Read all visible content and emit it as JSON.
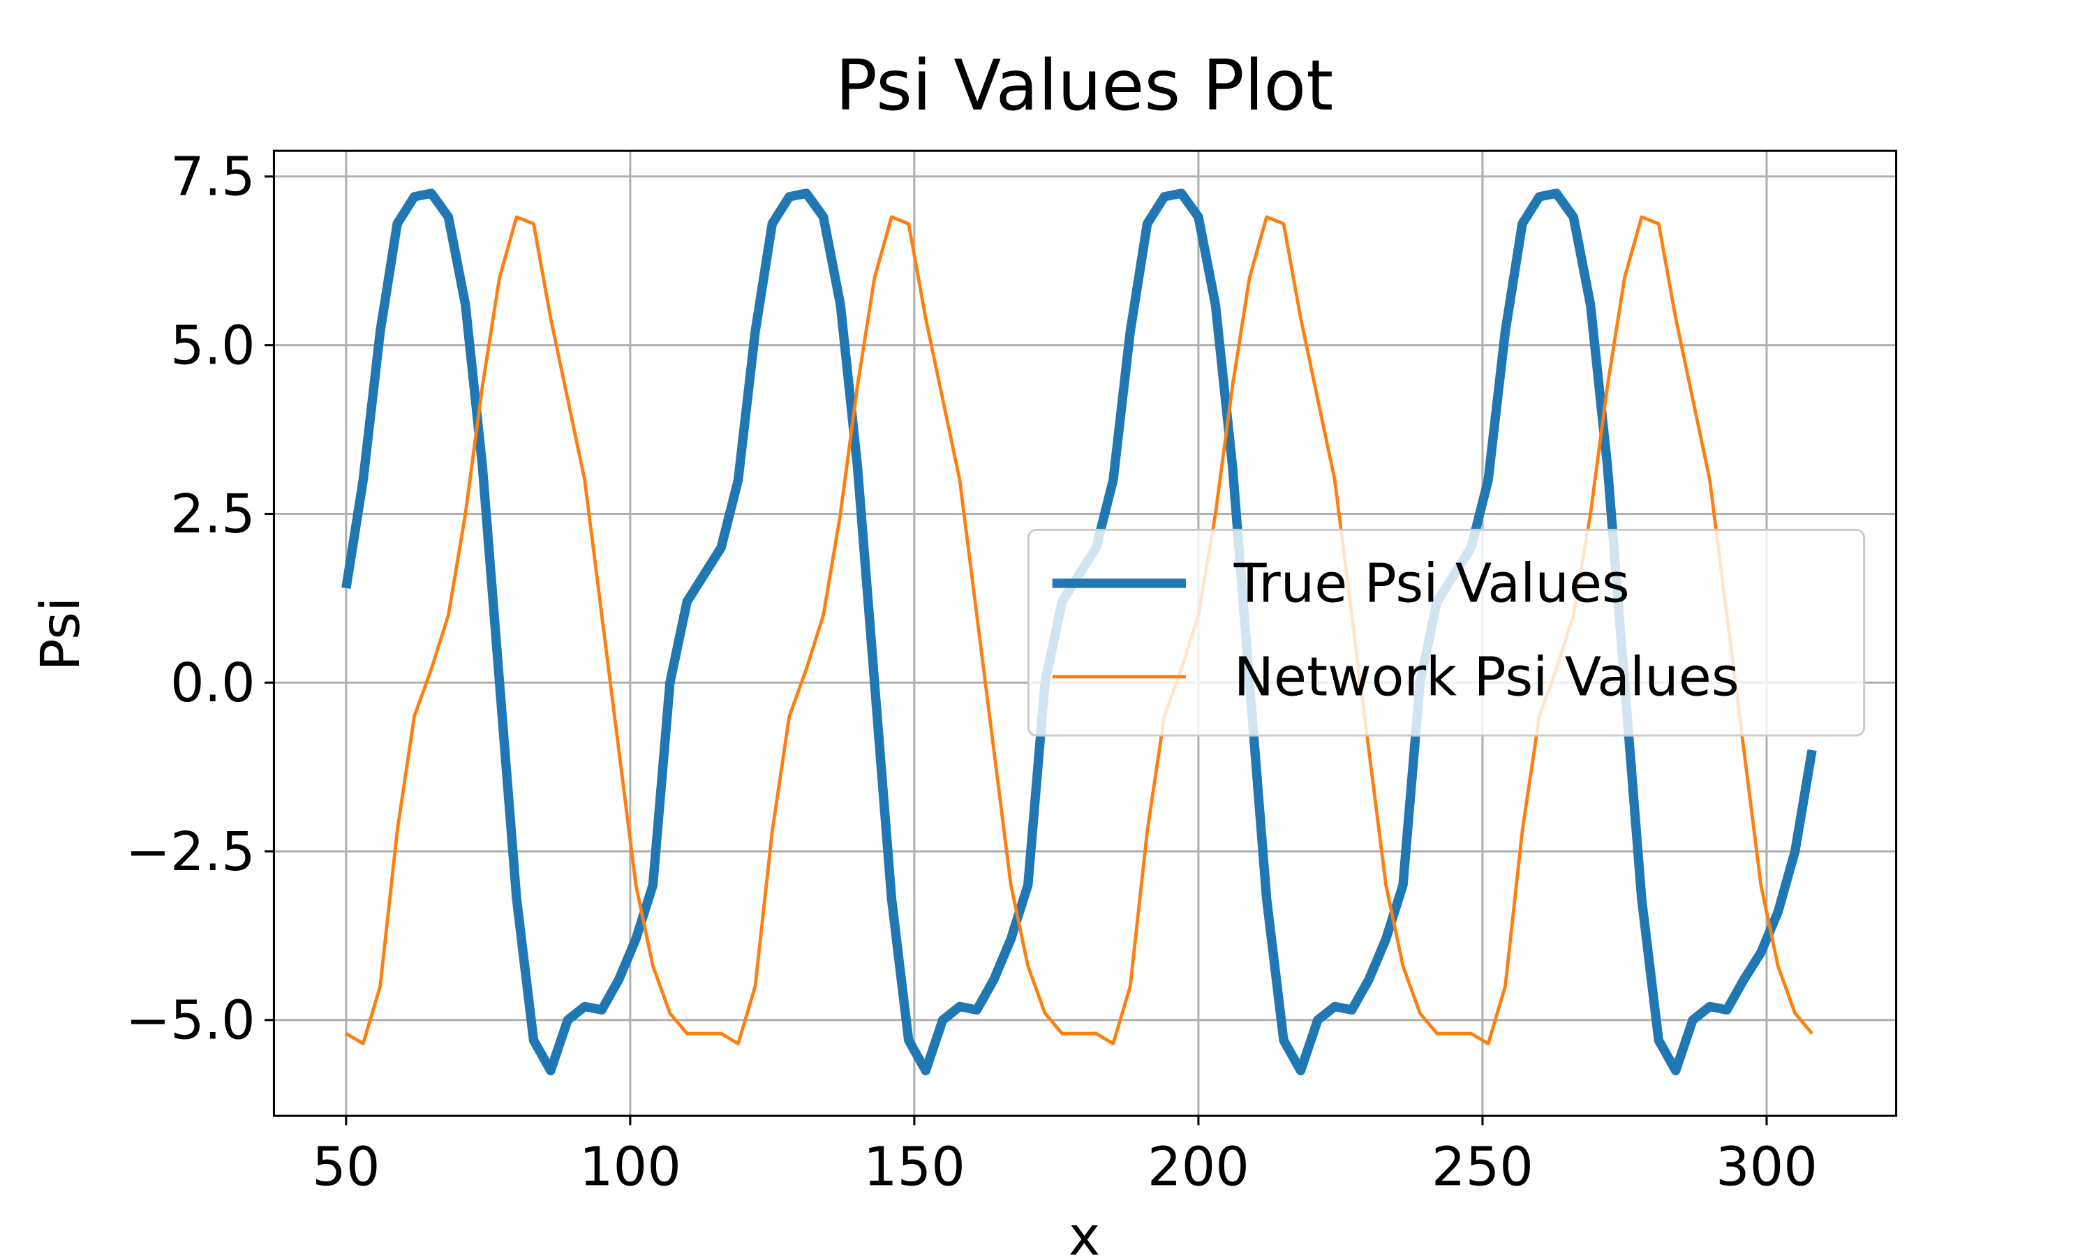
{
  "chart_data": {
    "type": "line",
    "title": "Psi Values Plot",
    "x_label": "x",
    "y_label": "Psi",
    "x": [
      50,
      53,
      56,
      59,
      62,
      65,
      68,
      71,
      74,
      77,
      80,
      83,
      86,
      89,
      92,
      95,
      98,
      101,
      104,
      107,
      110,
      113,
      116,
      119,
      122,
      125,
      128,
      131,
      134,
      137,
      140,
      143,
      146,
      149,
      152,
      155,
      158,
      161,
      164,
      167,
      170,
      173,
      176,
      179,
      182,
      185,
      188,
      191,
      194,
      197,
      200,
      203,
      206,
      209,
      212,
      215,
      218,
      221,
      224,
      227,
      230,
      233,
      236,
      239,
      242,
      245,
      248,
      251,
      254,
      257,
      260,
      263,
      266,
      269,
      272,
      275,
      278,
      281,
      284,
      287,
      290,
      293,
      296,
      299,
      302,
      305,
      308
    ],
    "series": [
      {
        "name": "True Psi Values",
        "color": "#1f77b4",
        "values": [
          1.4,
          3.0,
          5.2,
          6.8,
          7.2,
          7.25,
          6.9,
          5.6,
          3.2,
          0.0,
          -3.2,
          -5.3,
          -5.75,
          -5.0,
          -4.8,
          -4.85,
          -4.4,
          -3.8,
          -3.0,
          0.0,
          1.2,
          1.6,
          2.0,
          3.0,
          5.2,
          6.8,
          7.2,
          7.25,
          6.9,
          5.6,
          3.2,
          0.0,
          -3.2,
          -5.3,
          -5.75,
          -5.0,
          -4.8,
          -4.85,
          -4.4,
          -3.8,
          -3.0,
          0.0,
          1.2,
          1.6,
          2.0,
          3.0,
          5.2,
          6.8,
          7.2,
          7.25,
          6.9,
          5.6,
          3.2,
          0.0,
          -3.2,
          -5.3,
          -5.75,
          -5.0,
          -4.8,
          -4.85,
          -4.4,
          -3.8,
          -3.0,
          0.0,
          1.2,
          1.6,
          2.0,
          3.0,
          5.2,
          6.8,
          7.2,
          7.25,
          6.9,
          5.6,
          3.2,
          0.0,
          -3.2,
          -5.3,
          -5.75,
          -5.0,
          -4.8,
          -4.85,
          -4.4,
          -4.0,
          -3.4,
          -2.5,
          -1.0
        ]
      },
      {
        "name": "Network Psi Values",
        "color": "#ff7f0e",
        "values": [
          -5.2,
          -5.35,
          -4.5,
          -2.2,
          -0.5,
          0.2,
          1.0,
          2.5,
          4.4,
          6.0,
          6.9,
          6.8,
          5.4,
          4.2,
          3.0,
          1.0,
          -1.0,
          -3.0,
          -4.2,
          -4.9,
          -5.2,
          -5.2,
          -5.2,
          -5.35,
          -4.5,
          -2.2,
          -0.5,
          0.2,
          1.0,
          2.5,
          4.4,
          6.0,
          6.9,
          6.8,
          5.4,
          4.2,
          3.0,
          1.0,
          -1.0,
          -3.0,
          -4.2,
          -4.9,
          -5.2,
          -5.2,
          -5.2,
          -5.35,
          -4.5,
          -2.2,
          -0.5,
          0.2,
          1.0,
          2.5,
          4.4,
          6.0,
          6.9,
          6.8,
          5.4,
          4.2,
          3.0,
          1.0,
          -1.0,
          -3.0,
          -4.2,
          -4.9,
          -5.2,
          -5.2,
          -5.2,
          -5.35,
          -4.5,
          -2.2,
          -0.5,
          0.2,
          1.0,
          2.5,
          4.4,
          6.0,
          6.9,
          6.8,
          5.4,
          4.2,
          3.0,
          1.0,
          -1.0,
          -3.0,
          -4.2,
          -4.9,
          -5.2
        ]
      }
    ],
    "xlim": [
      37.3,
      322.8
    ],
    "ylim": [
      -6.42,
      7.88
    ],
    "xticks": [
      50,
      100,
      150,
      200,
      250,
      300
    ],
    "yticks": [
      {
        "value": -5,
        "label": "−5.0"
      },
      {
        "value": -2.5,
        "label": "−2.5"
      },
      {
        "value": 0,
        "label": "0.0"
      },
      2.5,
      {
        "value": 5,
        "label": "5.0"
      },
      7.5
    ],
    "grid": true,
    "legend": "right"
  }
}
